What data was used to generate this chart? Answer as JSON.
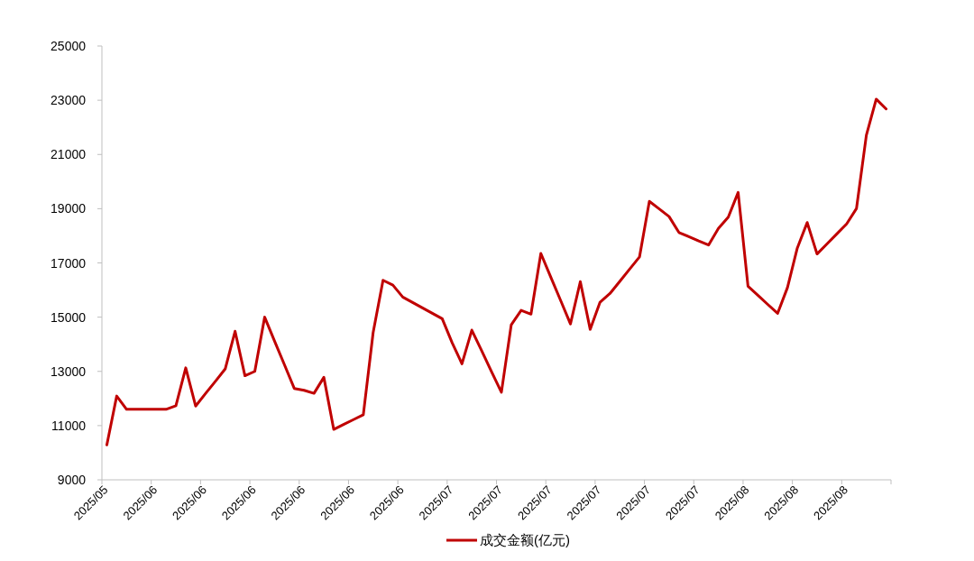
{
  "chart_data": {
    "type": "line",
    "categories": [
      "2025/05",
      null,
      null,
      null,
      null,
      "2025/06",
      null,
      null,
      null,
      null,
      "2025/06",
      null,
      null,
      null,
      null,
      "2025/06",
      null,
      null,
      null,
      null,
      "2025/06",
      null,
      null,
      null,
      null,
      "2025/06",
      null,
      null,
      null,
      null,
      "2025/06",
      null,
      null,
      null,
      null,
      "2025/07",
      null,
      null,
      null,
      null,
      "2025/07",
      null,
      null,
      null,
      null,
      "2025/07",
      null,
      null,
      null,
      null,
      "2025/07",
      null,
      null,
      null,
      null,
      "2025/07",
      null,
      null,
      null,
      null,
      "2025/07",
      null,
      null,
      null,
      null,
      "2025/08",
      null,
      null,
      null,
      null,
      "2025/08",
      null,
      null,
      null,
      null,
      "2025/08",
      null,
      null,
      null,
      null
    ],
    "series": [
      {
        "name": "成交金额(亿元)",
        "color": "#c00000",
        "values": [
          10290,
          12090,
          11600,
          11600,
          11600,
          11600,
          11600,
          11730,
          13130,
          11720,
          12180,
          12630,
          13090,
          14480,
          12840,
          13000,
          15000,
          14120,
          13250,
          12370,
          12300,
          12190,
          12780,
          10860,
          11040,
          11220,
          11400,
          14440,
          16360,
          16180,
          15740,
          15540,
          15340,
          15140,
          14940,
          14060,
          13280,
          14520,
          13760,
          12990,
          12230,
          14720,
          15250,
          15110,
          17350,
          16480,
          15620,
          14750,
          16310,
          14550,
          15550,
          15870,
          16320,
          16770,
          17220,
          19270,
          18990,
          18710,
          18120,
          17970,
          17810,
          17660,
          18270,
          18690,
          19600,
          16140,
          15810,
          15470,
          15140,
          16090,
          17550,
          18490,
          17330,
          17700,
          18070,
          18440,
          19010,
          21710,
          23040,
          22680
        ]
      }
    ],
    "ylim": [
      9000,
      25000
    ],
    "yticks": [
      9000,
      11000,
      13000,
      15000,
      17000,
      19000,
      21000,
      23000,
      25000
    ],
    "legend": "bottom",
    "grid": false,
    "marker": "none",
    "line_style": "solid"
  }
}
